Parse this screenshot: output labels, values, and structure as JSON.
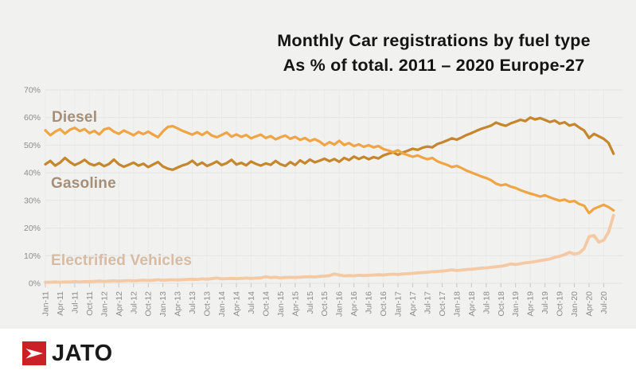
{
  "title": {
    "line1": "Monthly Car registrations by fuel type",
    "line2": "As % of total. 2011 – 2020 Europe-27"
  },
  "logo": {
    "text": "JATO",
    "icon": "jato-arrow-icon",
    "red": "#cb2026",
    "text_color": "#1a1a1a"
  },
  "colors": {
    "panel_bg": "#f1f1ef",
    "grid_h": "#e3e3e1",
    "grid_v": "#eaeae8",
    "tick": "#c6c6c4",
    "axis_text": "#8c8c8c"
  },
  "chart_data": {
    "type": "line",
    "title": "Monthly Car registrations by fuel type",
    "subtitle": "As % of total. 2011 – 2020 Europe-27",
    "ylabel": "",
    "xlabel": "",
    "ylim": [
      0,
      70
    ],
    "grid": true,
    "legend_position": "inline-left",
    "y_tick_labels": [
      "0%",
      "10%",
      "20%",
      "30%",
      "40%",
      "50%",
      "60%",
      "70%"
    ],
    "x_tick_labels": [
      "Jan-11",
      "Apr-11",
      "Jul-11",
      "Oct-11",
      "Jan-12",
      "Apr-12",
      "Jul-12",
      "Oct-12",
      "Jan-13",
      "Apr-13",
      "Jul-13",
      "Oct-13",
      "Jan-14",
      "Apr-14",
      "Jul-14",
      "Oct-14",
      "Jan-15",
      "Apr-15",
      "Jul-15",
      "Oct-15",
      "Jan-16",
      "Apr-16",
      "Jul-16",
      "Oct-16",
      "Jan-17",
      "Apr-17",
      "Jul-17",
      "Oct-17",
      "Jan-18",
      "Apr-18",
      "Jul-18",
      "Oct-18",
      "Jan-19",
      "Apr-19",
      "Jul-19",
      "Oct-19",
      "Jan-20",
      "Apr-20",
      "Jul-20"
    ],
    "x_monthly_range": [
      "Jan-11",
      "Sep-20"
    ],
    "months_per_tick": 3,
    "series": [
      {
        "name": "Diesel",
        "color": "#efa546",
        "label_color": "#a58f78",
        "stroke_width": 3.2,
        "values": [
          55.4,
          53.6,
          54.9,
          55.8,
          54.2,
          55.6,
          56.3,
          55.1,
          55.8,
          54.4,
          55.2,
          53.9,
          55.7,
          56.2,
          54.9,
          54.1,
          55.3,
          54.5,
          53.6,
          54.8,
          54.0,
          54.9,
          53.8,
          52.9,
          55.0,
          56.6,
          56.9,
          56.1,
          55.2,
          54.5,
          53.8,
          54.7,
          53.7,
          54.8,
          53.5,
          52.9,
          53.7,
          54.6,
          53.1,
          53.9,
          53.0,
          53.7,
          52.5,
          53.2,
          53.8,
          52.6,
          53.3,
          52.1,
          52.9,
          53.5,
          52.3,
          53.0,
          51.9,
          52.6,
          51.5,
          52.2,
          51.3,
          50.0,
          51.1,
          50.2,
          51.6,
          50.1,
          50.8,
          49.7,
          50.3,
          49.4,
          50.0,
          49.2,
          49.7,
          48.6,
          48.1,
          47.5,
          48.2,
          47.0,
          46.4,
          45.8,
          46.3,
          45.5,
          44.9,
          45.4,
          44.2,
          43.5,
          42.9,
          42.1,
          42.5,
          41.7,
          40.8,
          40.1,
          39.4,
          38.7,
          38.1,
          37.3,
          36.1,
          35.5,
          35.8,
          35.0,
          34.5,
          33.7,
          33.1,
          32.5,
          32.0,
          31.4,
          31.9,
          31.1,
          30.5,
          29.9,
          30.3,
          29.5,
          29.8,
          28.7,
          28.1,
          25.4,
          27.0,
          27.7,
          28.4,
          27.6,
          26.4
        ]
      },
      {
        "name": "Gasoline",
        "color": "#c5862d",
        "label_color": "#a58f78",
        "stroke_width": 3.2,
        "values": [
          43.1,
          44.3,
          42.6,
          43.7,
          45.4,
          43.9,
          42.8,
          43.6,
          44.7,
          43.3,
          42.7,
          43.5,
          42.4,
          43.2,
          44.8,
          43.1,
          42.2,
          42.9,
          43.7,
          42.6,
          43.3,
          42.1,
          43.0,
          43.9,
          42.3,
          41.5,
          41.1,
          41.9,
          42.7,
          43.2,
          44.4,
          42.8,
          43.7,
          42.5,
          43.2,
          44.1,
          42.8,
          43.5,
          44.7,
          43.0,
          43.6,
          42.7,
          44.1,
          43.2,
          42.6,
          43.4,
          42.9,
          44.3,
          43.1,
          42.5,
          43.9,
          42.8,
          44.5,
          43.4,
          44.8,
          43.8,
          44.4,
          45.1,
          44.2,
          45.0,
          44.0,
          45.4,
          44.6,
          45.9,
          45.0,
          45.8,
          44.9,
          45.7,
          45.2,
          46.3,
          46.9,
          47.4,
          46.5,
          47.4,
          48.0,
          48.7,
          48.3,
          49.1,
          49.5,
          49.2,
          50.4,
          51.0,
          51.7,
          52.5,
          52.0,
          52.8,
          53.7,
          54.4,
          55.2,
          55.9,
          56.5,
          57.1,
          58.2,
          57.5,
          57.0,
          57.9,
          58.5,
          59.2,
          58.7,
          60.0,
          59.3,
          59.8,
          59.1,
          58.4,
          58.9,
          57.8,
          58.3,
          57.1,
          57.6,
          56.4,
          55.3,
          52.6,
          54.1,
          53.2,
          52.3,
          50.8,
          46.9
        ]
      },
      {
        "name": "Electrified Vehicles",
        "color": "#f4c9a3",
        "label_color": "#d7bba2",
        "stroke_width": 3.8,
        "values": [
          0.4,
          0.4,
          0.5,
          0.4,
          0.5,
          0.5,
          0.6,
          0.5,
          0.6,
          0.6,
          0.7,
          0.8,
          0.7,
          0.8,
          0.9,
          0.8,
          0.9,
          1.0,
          0.9,
          1.0,
          1.1,
          1.0,
          1.1,
          1.3,
          1.1,
          1.2,
          1.3,
          1.2,
          1.3,
          1.4,
          1.5,
          1.4,
          1.6,
          1.5,
          1.7,
          1.9,
          1.6,
          1.7,
          1.8,
          1.7,
          1.8,
          1.9,
          1.8,
          1.9,
          2.0,
          2.4,
          2.1,
          2.2,
          2.0,
          2.1,
          2.2,
          2.1,
          2.2,
          2.3,
          2.4,
          2.3,
          2.5,
          2.6,
          2.8,
          3.4,
          3.0,
          2.7,
          2.8,
          2.7,
          2.9,
          2.8,
          2.9,
          3.0,
          3.1,
          3.0,
          3.2,
          3.3,
          3.2,
          3.4,
          3.5,
          3.6,
          3.8,
          3.9,
          4.0,
          4.2,
          4.3,
          4.4,
          4.6,
          4.9,
          4.6,
          4.8,
          5.0,
          5.1,
          5.3,
          5.5,
          5.6,
          5.8,
          6.0,
          6.2,
          6.5,
          7.0,
          6.8,
          7.1,
          7.4,
          7.6,
          7.9,
          8.2,
          8.5,
          8.8,
          9.4,
          9.8,
          10.4,
          11.2,
          10.6,
          11.0,
          12.6,
          16.9,
          17.3,
          14.9,
          15.6,
          18.6,
          24.6
        ]
      }
    ]
  }
}
